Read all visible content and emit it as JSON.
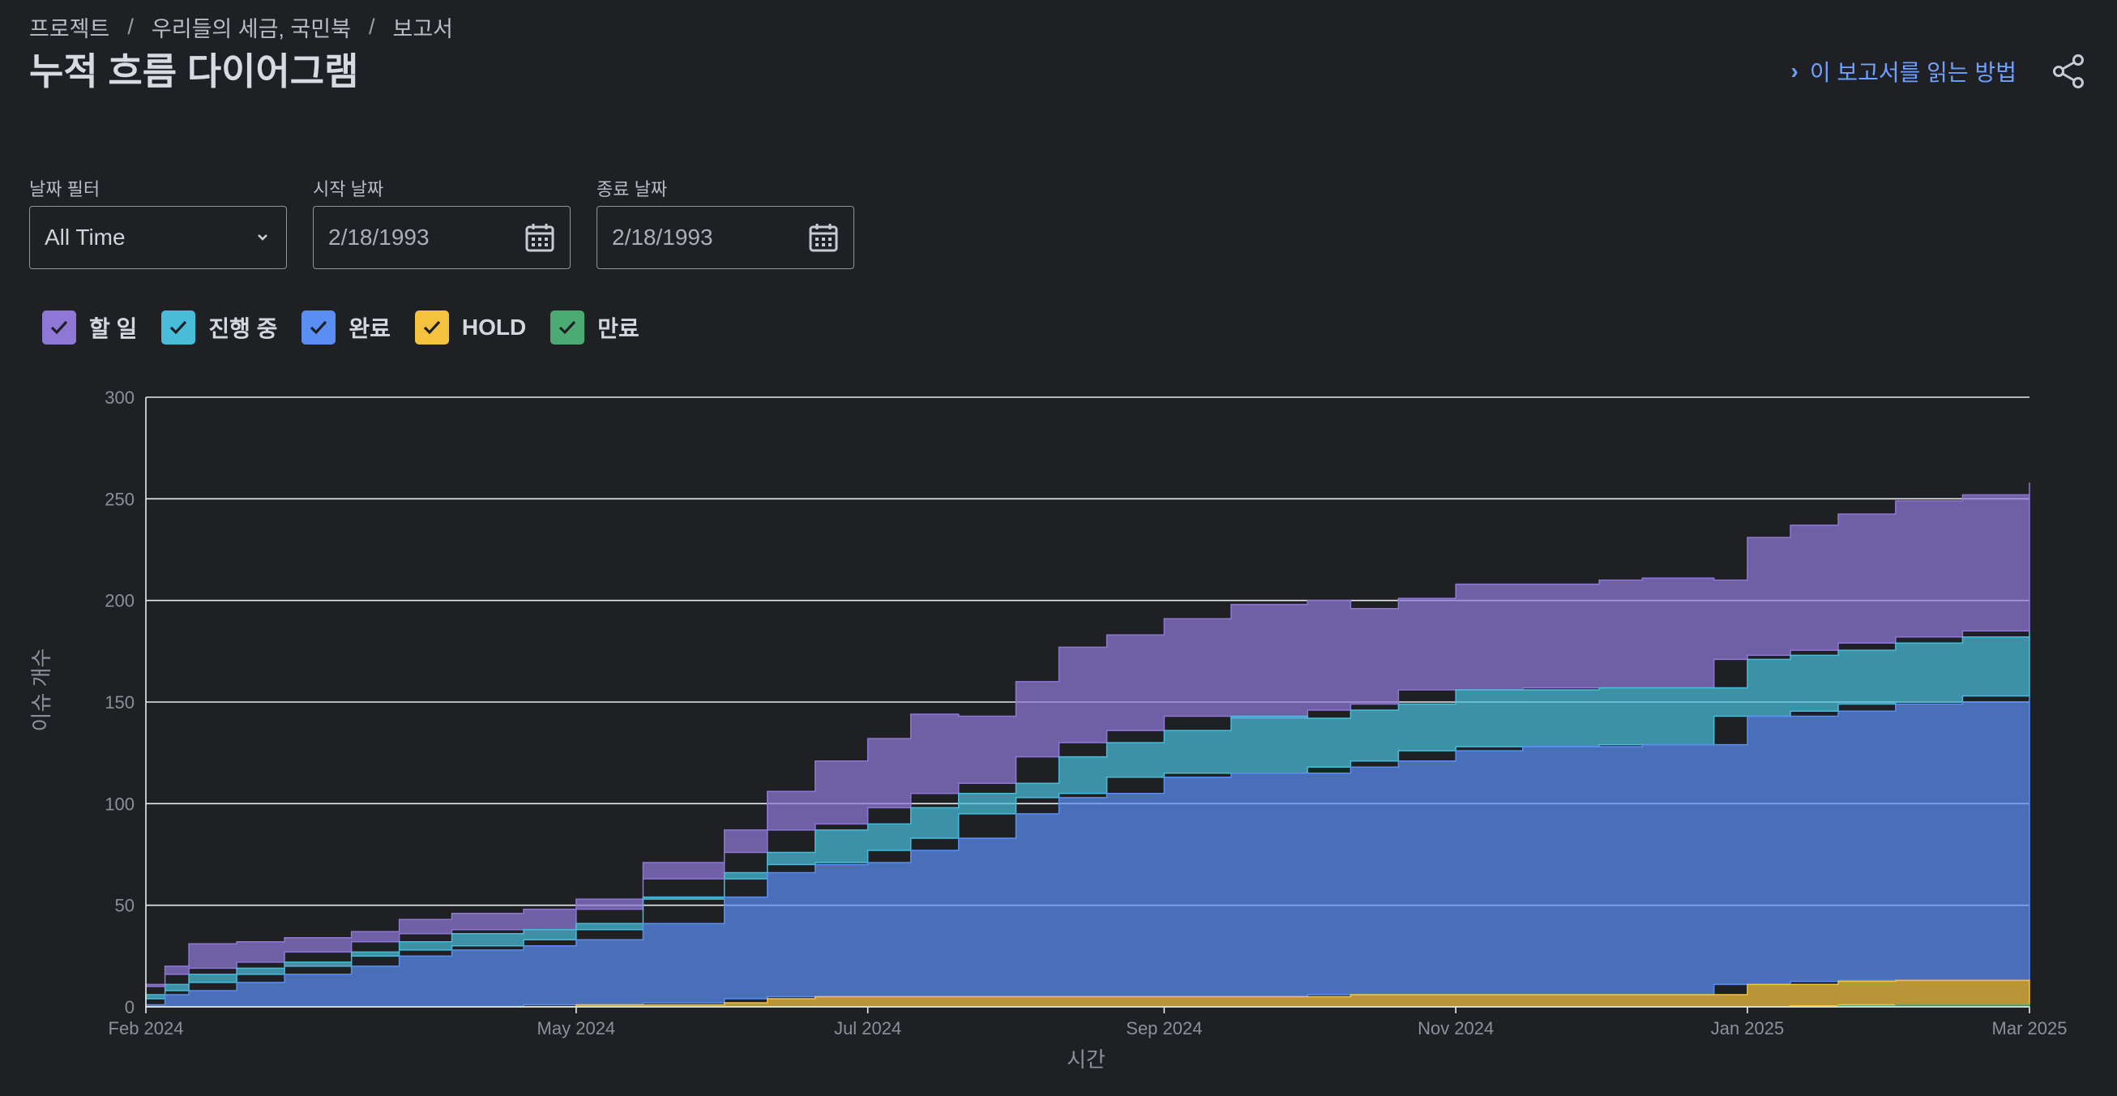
{
  "breadcrumb": [
    "프로젝트",
    "우리들의 세금, 국민북",
    "보고서"
  ],
  "page_title": "누적 흐름 다이어그램",
  "howto_link": "이 보고서를 읽는 방법",
  "filters": {
    "date_filter": {
      "label": "날짜 필터",
      "value": "All Time"
    },
    "start_date": {
      "label": "시작 날짜",
      "value": "2/18/1993"
    },
    "end_date": {
      "label": "종료 날짜",
      "value": "2/18/1993"
    }
  },
  "colors": {
    "background": "#1e2024",
    "accent": "#6fa0ff",
    "todo": "#8f77d6",
    "in_progress": "#48bcd9",
    "done": "#5a8ef2",
    "hold": "#f5c23e",
    "expired": "#4bab72"
  },
  "chart_data": {
    "type": "area",
    "stacked": true,
    "xlabel": "시간",
    "ylabel": "이슈 개수",
    "ylim": [
      0,
      300
    ],
    "yticks": [
      0,
      50,
      100,
      150,
      200,
      250,
      300
    ],
    "xlim": [
      "2024-02-01",
      "2025-03-01"
    ],
    "xticks": [
      {
        "date": "2024-02-01",
        "label": "Feb 2024"
      },
      {
        "date": "2024-05-01",
        "label": "May 2024"
      },
      {
        "date": "2024-07-01",
        "label": "Jul 2024"
      },
      {
        "date": "2024-09-01",
        "label": "Sep 2024"
      },
      {
        "date": "2024-11-01",
        "label": "Nov 2024"
      },
      {
        "date": "2025-01-01",
        "label": "Jan 2025"
      },
      {
        "date": "2025-03-01",
        "label": "Mar 2025"
      }
    ],
    "grid": true,
    "legend_position": "top-left",
    "x": [
      "2024-02-01",
      "2024-02-05",
      "2024-02-10",
      "2024-02-20",
      "2024-03-01",
      "2024-03-15",
      "2024-03-25",
      "2024-04-05",
      "2024-04-20",
      "2024-05-01",
      "2024-05-15",
      "2024-06-01",
      "2024-06-10",
      "2024-06-20",
      "2024-07-01",
      "2024-07-10",
      "2024-07-20",
      "2024-08-01",
      "2024-08-10",
      "2024-08-20",
      "2024-09-01",
      "2024-09-15",
      "2024-10-01",
      "2024-10-10",
      "2024-10-20",
      "2024-11-01",
      "2024-11-15",
      "2024-12-01",
      "2024-12-10",
      "2024-12-25",
      "2025-01-01",
      "2025-01-10",
      "2025-01-20",
      "2025-02-01",
      "2025-02-15",
      "2025-03-01"
    ],
    "series": [
      {
        "name": "만료",
        "key": "expired",
        "values": [
          0,
          0,
          0,
          0,
          0,
          0,
          0,
          0,
          0,
          0,
          0,
          0,
          0,
          0,
          0,
          0,
          0,
          0,
          0,
          0,
          0,
          0,
          0,
          0,
          0,
          0,
          0,
          0,
          0,
          0,
          0,
          0,
          0.5,
          1,
          1,
          1
        ]
      },
      {
        "name": "HOLD",
        "key": "hold",
        "values": [
          0,
          0,
          0,
          0,
          0,
          0,
          0,
          0,
          0,
          1,
          1,
          2,
          4,
          5,
          5,
          5,
          5,
          5,
          5,
          5,
          5,
          5,
          5,
          6,
          6,
          6,
          6,
          6,
          6,
          6,
          11,
          11,
          12,
          12,
          12,
          12
        ]
      },
      {
        "name": "완료",
        "key": "done",
        "values": [
          1,
          6,
          8,
          12,
          16,
          20,
          25,
          28,
          30,
          32,
          40,
          52,
          62,
          65,
          66,
          72,
          78,
          90,
          98,
          100,
          108,
          110,
          110,
          112,
          115,
          120,
          122,
          122,
          123,
          123,
          132,
          132,
          133,
          136,
          137,
          140
        ]
      },
      {
        "name": "진행 중",
        "key": "in_progress",
        "values": [
          3,
          5,
          8,
          7,
          6,
          7,
          7,
          8,
          8,
          5,
          12,
          9,
          10,
          17,
          19,
          21,
          22,
          15,
          20,
          25,
          23,
          28,
          27,
          28,
          28,
          30,
          28,
          29,
          28,
          28,
          28,
          30,
          30,
          30,
          32,
          32
        ]
      },
      {
        "name": "할 일",
        "key": "todo",
        "values": [
          6,
          9,
          15,
          13,
          12,
          10,
          11,
          10,
          10,
          10,
          18,
          24,
          30,
          34,
          42,
          46,
          38,
          50,
          54,
          53,
          55,
          55,
          58,
          50,
          52,
          52,
          52,
          53,
          54,
          53,
          60,
          64,
          67,
          70,
          70,
          73
        ]
      }
    ]
  }
}
